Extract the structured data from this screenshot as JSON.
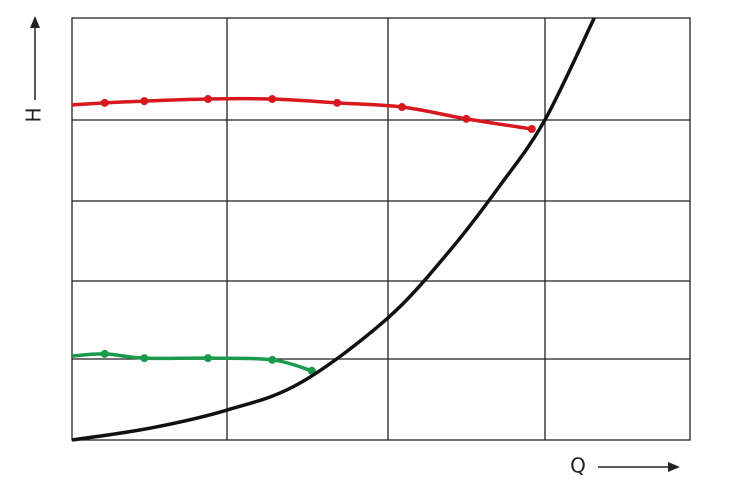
{
  "chart_data": {
    "type": "line",
    "x_label": "Q",
    "y_label": "H",
    "xlim": [
      0,
      100
    ],
    "ylim": [
      0,
      100
    ],
    "series": [
      {
        "color": "#d7191f",
        "x": [
          0,
          5.3,
          11.7,
          22.0,
          32.4,
          42.9,
          53.4,
          63.8,
          74.4
        ],
        "values": [
          79.4,
          79.9,
          80.3,
          80.8,
          80.8,
          79.9,
          78.9,
          76.1,
          73.7
        ]
      },
      {
        "color": "#1a9a4a",
        "x": [
          0,
          5.3,
          11.7,
          22.0,
          32.4,
          38.8
        ],
        "values": [
          19.9,
          20.4,
          19.4,
          19.4,
          19.0,
          16.4
        ]
      },
      {
        "color": "#111111",
        "x": [
          0,
          12.6,
          25.1,
          36.9,
          51.1,
          61.2,
          69.3,
          76.5,
          84.5
        ],
        "values": [
          0,
          2.8,
          7.1,
          13.5,
          28.9,
          45.0,
          60.4,
          75.8,
          100
        ]
      }
    ]
  }
}
